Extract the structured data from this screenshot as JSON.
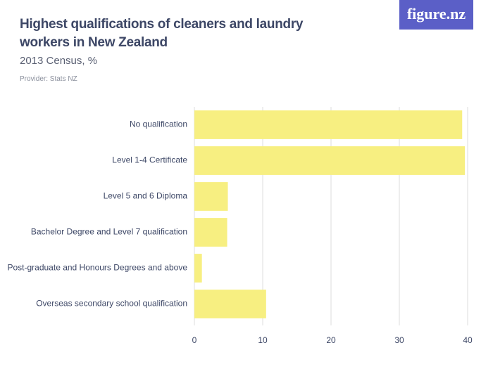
{
  "chart_data": {
    "type": "bar",
    "orientation": "horizontal",
    "title": "Highest qualifications of cleaners and laundry workers in New Zealand",
    "subtitle": "2013 Census, %",
    "provider": "Provider: Stats NZ",
    "logo": "figure.nz",
    "categories": [
      "No qualification",
      "Level 1-4 Certificate",
      "Level 5 and 6 Diploma",
      "Bachelor Degree and Level 7 qualification",
      "Post-graduate and Honours Degrees and above",
      "Overseas secondary school qualification"
    ],
    "values": [
      39.2,
      39.6,
      4.9,
      4.8,
      1.1,
      10.5
    ],
    "color": "#f7ef81",
    "xlim": [
      0,
      40
    ],
    "xticks": [
      0,
      10,
      20,
      30,
      40
    ],
    "grid": true
  }
}
